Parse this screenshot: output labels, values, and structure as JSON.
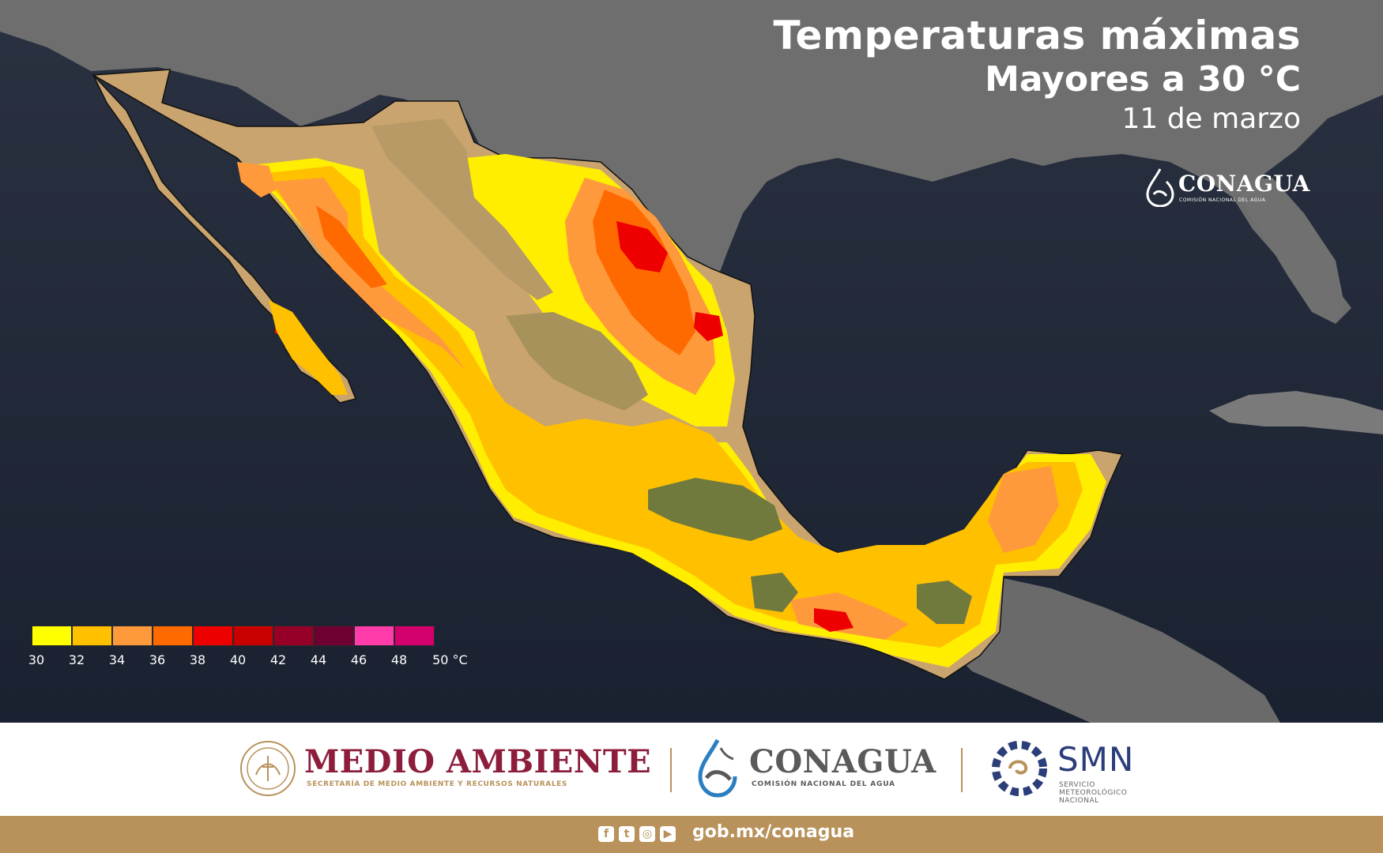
{
  "header": {
    "title": "Temperaturas máximas",
    "subtitle": "Mayores a 30 °C",
    "date": "11 de marzo"
  },
  "map_logo": {
    "name": "CONAGUA",
    "sub": "COMISIÓN NACIONAL DEL AGUA"
  },
  "legend": {
    "colors": [
      "#ffff00",
      "#ffc000",
      "#ff9a3c",
      "#ff6a00",
      "#ee0000",
      "#c80000",
      "#960028",
      "#6e0032",
      "#ff3caa",
      "#d4006e"
    ],
    "labels": [
      "30",
      "32",
      "34",
      "36",
      "38",
      "40",
      "42",
      "44",
      "46",
      "48",
      "50 °C"
    ]
  },
  "footer": {
    "medio_ambiente": {
      "name": "MEDIO AMBIENTE",
      "sub": "SECRETARÍA DE MEDIO AMBIENTE Y RECURSOS NATURALES"
    },
    "conagua": {
      "name": "CONAGUA",
      "sub": "COMISIÓN NACIONAL DEL AGUA"
    },
    "smn": {
      "name": "SMN",
      "sub": "SERVICIO METEOROLÓGICO NACIONAL"
    }
  },
  "bottom_bar": {
    "social": [
      "facebook-icon",
      "twitter-icon",
      "instagram-icon",
      "youtube-icon"
    ],
    "url": "gob.mx/conagua"
  },
  "colors": {
    "ocean": "#1c2433",
    "land_outside": "#6b6b6b",
    "mexico_land": "#c9a46e",
    "gold": "#b8925a",
    "maroon": "#8c1e3c"
  }
}
